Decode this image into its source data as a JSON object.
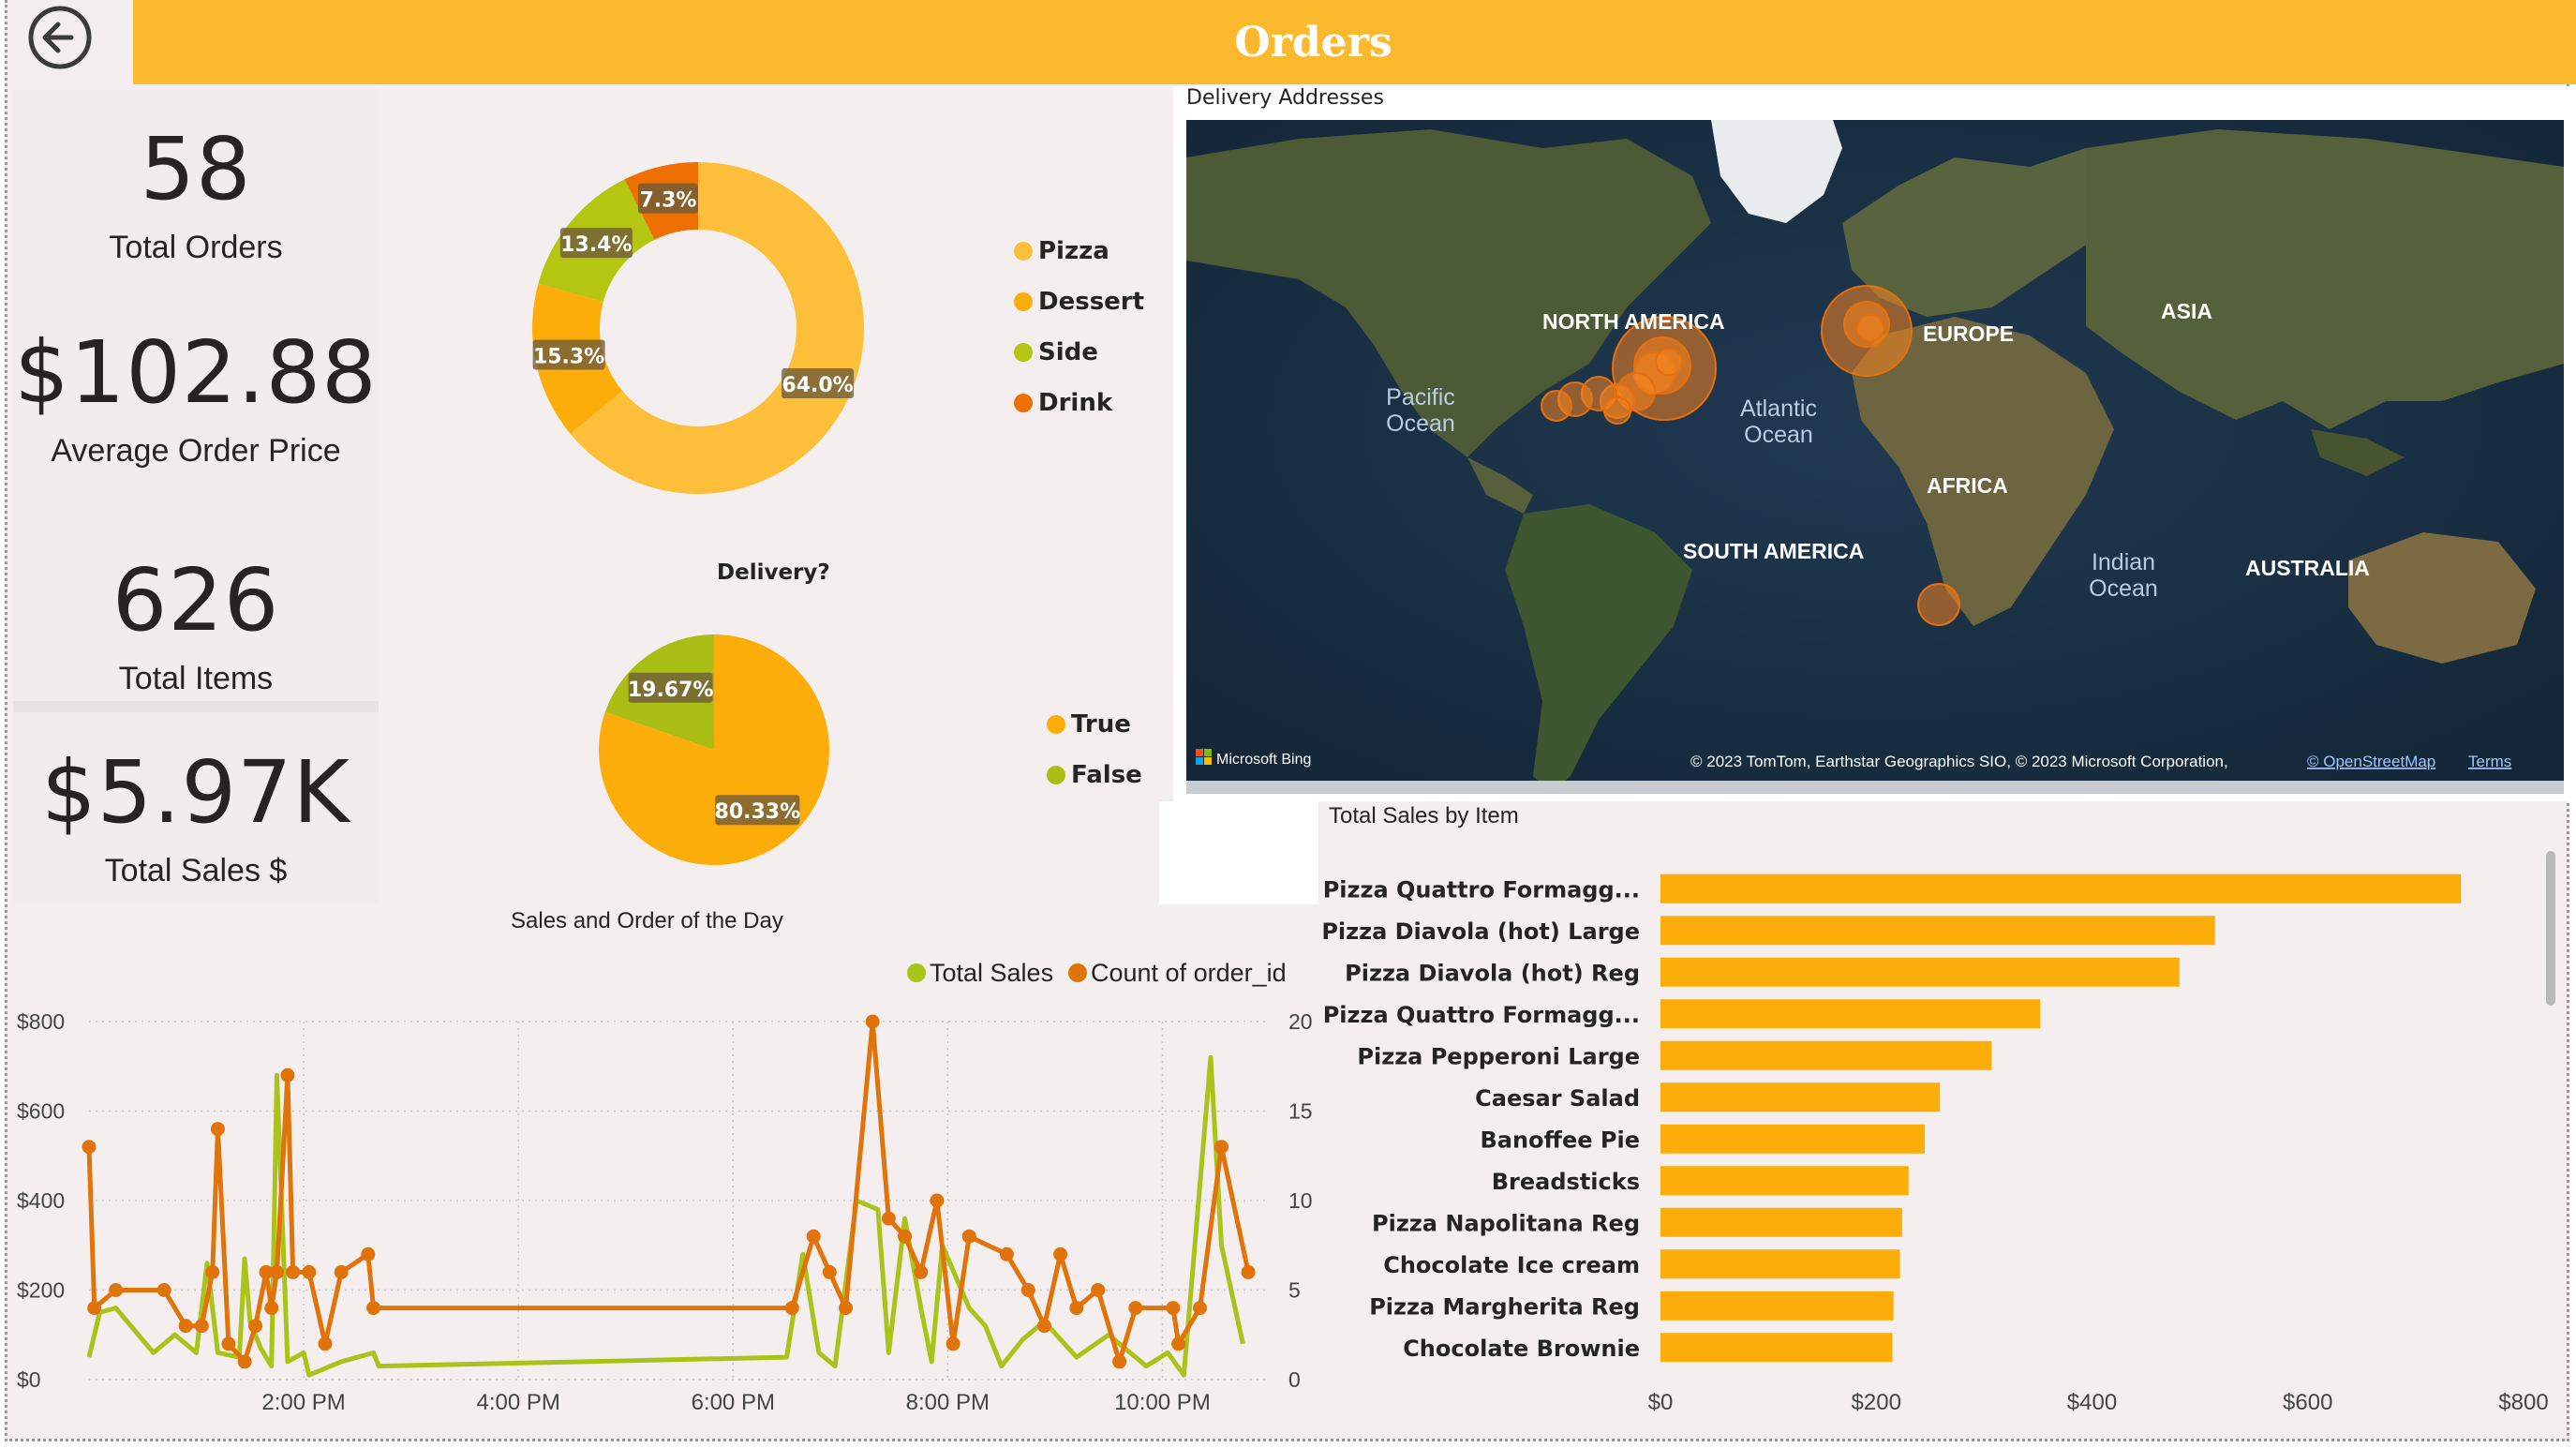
{
  "header": {
    "title": "Orders",
    "back_icon": "back-arrow-icon"
  },
  "kpis": [
    {
      "value": "58",
      "label": "Total Orders"
    },
    {
      "value": "$102.88",
      "label": "Average Order Price"
    },
    {
      "value": "626",
      "label": "Total Items"
    },
    {
      "value": "$5.97K",
      "label": "Total Sales $"
    }
  ],
  "category_donut": {
    "legend": [
      "Pizza",
      "Dessert",
      "Side",
      "Drink"
    ],
    "chart_data": {
      "type": "pie",
      "categories": [
        "Pizza",
        "Dessert",
        "Side",
        "Drink"
      ],
      "values": [
        64.0,
        15.3,
        13.4,
        7.3
      ],
      "labels": [
        "64.0%",
        "15.3%",
        "13.4%",
        "7.3%"
      ],
      "colors": [
        "#fdbf3a",
        "#fdad0a",
        "#b4c512",
        "#ee7000"
      ],
      "donut": true
    }
  },
  "delivery_pie": {
    "title": "Delivery?",
    "legend": [
      "True",
      "False"
    ],
    "chart_data": {
      "type": "pie",
      "categories": [
        "True",
        "False"
      ],
      "values": [
        80.33,
        19.67
      ],
      "labels": [
        "80.33%",
        "19.67%"
      ],
      "colors": [
        "#fdad0a",
        "#aabd14"
      ]
    }
  },
  "map": {
    "title": "Delivery Addresses",
    "labels": {
      "north_america": "NORTH AMERICA",
      "europe": "EUROPE",
      "asia": "ASIA",
      "africa": "AFRICA",
      "south_america": "SOUTH AMERICA",
      "australia": "AUSTRALIA",
      "pacific_1": "Pacific",
      "pacific_2": "Ocean",
      "atlantic_1": "Atlantic",
      "atlantic_2": "Ocean",
      "indian_1": "Indian",
      "indian_2": "Ocean"
    },
    "brand": "Microsoft Bing",
    "attribution": "© 2023 TomTom, Earthstar Geographics SIO, © 2023 Microsoft Corporation,",
    "osm_link": "© OpenStreetMap",
    "terms_link": "Terms"
  },
  "line_chart": {
    "title": "Sales and Order of the Day",
    "legend": [
      "Total Sales",
      "Count of order_id"
    ],
    "colors": {
      "sales": "#aac31a",
      "count": "#e0730a"
    },
    "chart_data": {
      "type": "line",
      "x_ticks": [
        "2:00 PM",
        "4:00 PM",
        "6:00 PM",
        "8:00 PM",
        "10:00 PM"
      ],
      "y_left_ticks": [
        "$0",
        "$200",
        "$400",
        "$600",
        "$800"
      ],
      "y_right_ticks": [
        "0",
        "5",
        "10",
        "15",
        "20"
      ],
      "ylim_left": [
        0,
        800
      ],
      "ylim_right": [
        0,
        20
      ],
      "xlim_hours": [
        12.0,
        23.0
      ],
      "series": [
        {
          "name": "Total Sales",
          "axis": "left",
          "points": [
            [
              12.0,
              50
            ],
            [
              12.1,
              150
            ],
            [
              12.25,
              160
            ],
            [
              12.6,
              60
            ],
            [
              12.8,
              100
            ],
            [
              13.0,
              60
            ],
            [
              13.1,
              260
            ],
            [
              13.2,
              60
            ],
            [
              13.4,
              50
            ],
            [
              13.45,
              270
            ],
            [
              13.5,
              130
            ],
            [
              13.6,
              70
            ],
            [
              13.7,
              30
            ],
            [
              13.75,
              680
            ],
            [
              13.85,
              40
            ],
            [
              14.0,
              60
            ],
            [
              14.05,
              10
            ],
            [
              14.35,
              40
            ],
            [
              14.65,
              60
            ],
            [
              14.7,
              30
            ],
            [
              18.5,
              50
            ],
            [
              18.65,
              280
            ],
            [
              18.8,
              60
            ],
            [
              18.95,
              30
            ],
            [
              19.15,
              400
            ],
            [
              19.35,
              380
            ],
            [
              19.45,
              60
            ],
            [
              19.6,
              360
            ],
            [
              19.75,
              160
            ],
            [
              19.85,
              40
            ],
            [
              19.95,
              300
            ],
            [
              20.2,
              160
            ],
            [
              20.35,
              120
            ],
            [
              20.5,
              30
            ],
            [
              20.7,
              90
            ],
            [
              20.9,
              130
            ],
            [
              21.2,
              50
            ],
            [
              21.5,
              100
            ],
            [
              21.85,
              30
            ],
            [
              22.05,
              60
            ],
            [
              22.2,
              10
            ],
            [
              22.45,
              720
            ],
            [
              22.55,
              300
            ],
            [
              22.75,
              80
            ]
          ]
        },
        {
          "name": "Count of order_id",
          "axis": "right",
          "points": [
            [
              12.0,
              13
            ],
            [
              12.05,
              4
            ],
            [
              12.25,
              5
            ],
            [
              12.7,
              5
            ],
            [
              12.9,
              3
            ],
            [
              13.05,
              3
            ],
            [
              13.15,
              6
            ],
            [
              13.2,
              14
            ],
            [
              13.3,
              2
            ],
            [
              13.45,
              1
            ],
            [
              13.55,
              3
            ],
            [
              13.65,
              6
            ],
            [
              13.7,
              4
            ],
            [
              13.75,
              6
            ],
            [
              13.85,
              17
            ],
            [
              13.9,
              6
            ],
            [
              14.05,
              6
            ],
            [
              14.2,
              2
            ],
            [
              14.35,
              6
            ],
            [
              14.6,
              7
            ],
            [
              14.65,
              4
            ],
            [
              18.55,
              4
            ],
            [
              18.75,
              8
            ],
            [
              18.9,
              6
            ],
            [
              19.05,
              4
            ],
            [
              19.3,
              20
            ],
            [
              19.45,
              9
            ],
            [
              19.6,
              8
            ],
            [
              19.75,
              6
            ],
            [
              19.9,
              10
            ],
            [
              20.05,
              2
            ],
            [
              20.2,
              8
            ],
            [
              20.55,
              7
            ],
            [
              20.75,
              5
            ],
            [
              20.9,
              3
            ],
            [
              21.05,
              7
            ],
            [
              21.2,
              4
            ],
            [
              21.4,
              5
            ],
            [
              21.6,
              1
            ],
            [
              21.75,
              4
            ],
            [
              22.1,
              4
            ],
            [
              22.15,
              2
            ],
            [
              22.35,
              4
            ],
            [
              22.55,
              13
            ],
            [
              22.8,
              6
            ]
          ]
        }
      ]
    }
  },
  "bar_chart": {
    "title": "Total Sales by Item",
    "color": "#fdad0a",
    "chart_data": {
      "type": "bar",
      "orientation": "horizontal",
      "categories": [
        "Pizza Quattro Formagg...",
        "Pizza Diavola (hot) Large",
        "Pizza Diavola (hot) Reg",
        "Pizza Quattro Formagg...",
        "Pizza Pepperoni Large",
        "Caesar Salad",
        "Banoffee Pie",
        "Breadsticks",
        "Pizza Napolitana Reg",
        "Chocolate Ice cream",
        "Pizza Margherita Reg",
        "Chocolate Brownie"
      ],
      "values": [
        742,
        514,
        481,
        352,
        307,
        259,
        245,
        230,
        224,
        222,
        216,
        215
      ],
      "x_ticks": [
        "$0",
        "$200",
        "$400",
        "$600",
        "$800"
      ],
      "xlim": [
        0,
        800
      ]
    }
  }
}
